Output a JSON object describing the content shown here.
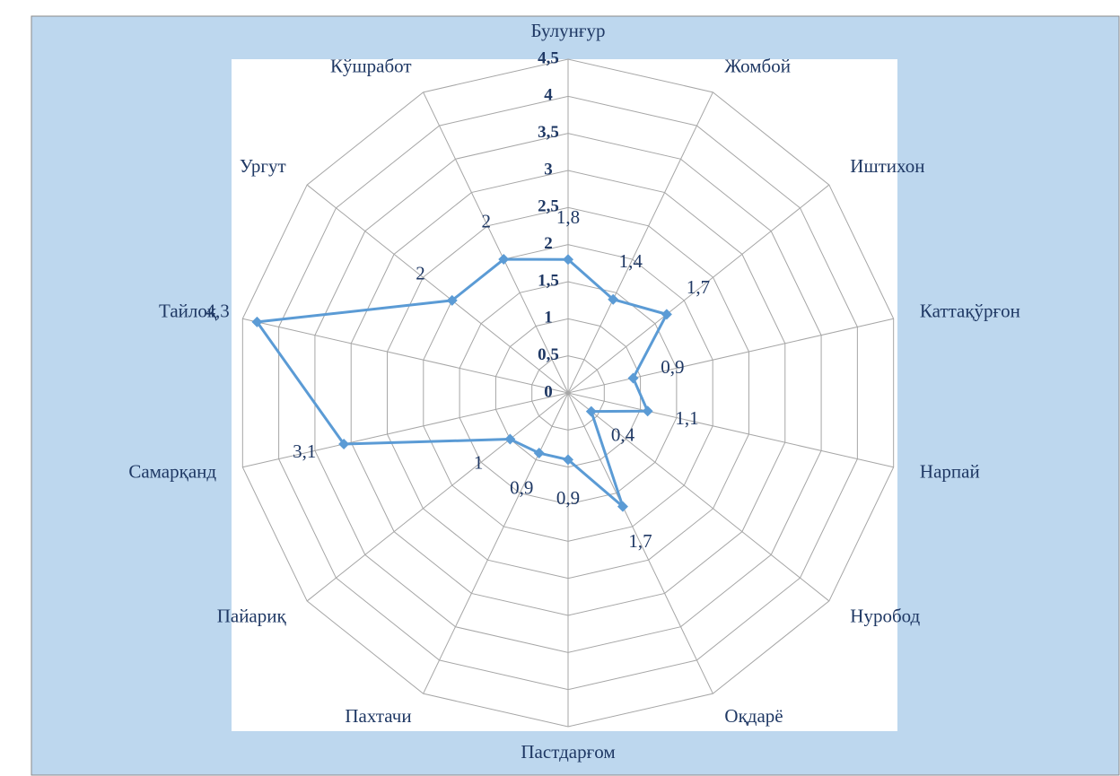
{
  "chart_data": {
    "type": "radar",
    "categories": [
      "Булунғур",
      "Жомбой",
      "Иштихон",
      "Каттақўрғон",
      "Нарпай",
      "Нуробод",
      "Оқдарё",
      "Пастдарғом",
      "Пахтачи",
      "Пайариқ",
      "Самарқанд",
      "Тайлоқ",
      "Ургут",
      "Кўшработ"
    ],
    "values": [
      1.8,
      1.4,
      1.7,
      0.9,
      1.1,
      0.4,
      1.7,
      0.9,
      0.9,
      1,
      3.1,
      4.3,
      2,
      2
    ],
    "value_labels": [
      "1,8",
      "1,4",
      "1,7",
      "0,9",
      "1,1",
      "0,4",
      "1,7",
      "0,9",
      "0,9",
      "1",
      "3,1",
      "4,3",
      "2",
      "2"
    ],
    "color": "#5b9bd5",
    "ylim": [
      0,
      4.5
    ],
    "yticks": [
      0,
      {
        "value": 0.5,
        "label": "0,5"
      },
      1,
      {
        "value": 1.5,
        "label": "1,5"
      },
      2,
      {
        "value": 2.5,
        "label": "2,5"
      },
      3,
      {
        "value": 3.5,
        "label": "3,5"
      },
      4,
      {
        "value": 4.5,
        "label": "4,5"
      }
    ],
    "grid": true
  }
}
